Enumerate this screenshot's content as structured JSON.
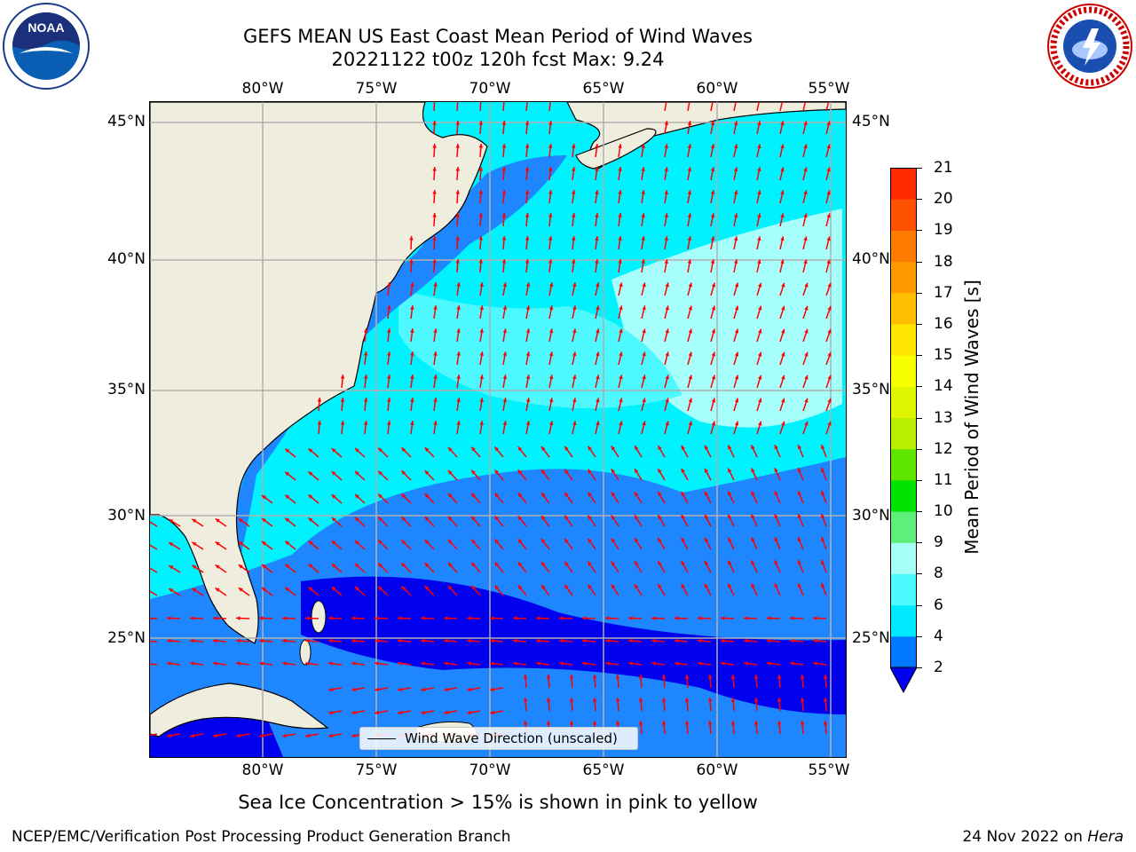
{
  "header": {
    "title_line1": "GEFS MEAN US East Coast Mean Period of Wind Waves",
    "title_line2": "20221122 t00z 120h fcst   Max: 9.24"
  },
  "logos": {
    "left_name": "noaa-logo",
    "left_text": "NOAA",
    "right_name": "nws-logo",
    "right_text": "NATIONAL WEATHER SERVICE"
  },
  "map": {
    "lon_labels": [
      "80°W",
      "75°W",
      "70°W",
      "65°W",
      "60°W",
      "55°W"
    ],
    "lat_labels": [
      "45°N",
      "40°N",
      "35°N",
      "30°N",
      "25°N"
    ],
    "legend_label": "Wind Wave Direction (unscaled)",
    "colors": {
      "land": "#efedde",
      "ocean_2_4": "#1e86ff",
      "ocean_4_6": "#00f2ff",
      "ocean_6_8": "#4df8ff",
      "ocean_8_9": "#a6fffb",
      "ocean_lt2": "#0000ee",
      "arrows": "#ff0000",
      "grid": "#b0b0b0"
    }
  },
  "colorbar": {
    "label": "Mean Period of Wind Waves [s]",
    "ticks": [
      "2",
      "4",
      "6",
      "8",
      "9",
      "10",
      "11",
      "12",
      "13",
      "14",
      "15",
      "16",
      "17",
      "18",
      "19",
      "20",
      "21"
    ],
    "colors": [
      "#0078ff",
      "#00eaff",
      "#4dfaff",
      "#a6fff6",
      "#5cf07a",
      "#00e400",
      "#5ee600",
      "#b9ee00",
      "#e0f500",
      "#f7ff00",
      "#ffe600",
      "#ffbf00",
      "#ff9900",
      "#ff7a00",
      "#ff5200",
      "#ff2a00",
      "#ff0000"
    ],
    "under_color": "#0000ee"
  },
  "footer": {
    "note": "Sea Ice Concentration > 15% is shown in pink to yellow",
    "credit": "NCEP/EMC/Verification Post Processing Product Generation Branch",
    "date": "24 Nov 2022 on ",
    "machine": "Hera"
  }
}
